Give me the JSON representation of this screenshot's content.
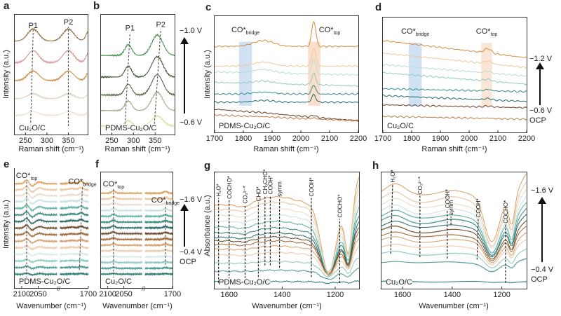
{
  "chart_data": [
    {
      "id": "a",
      "letter": "a",
      "type": "line",
      "sample": "Cu₂O/C",
      "xlabel": "Raman shift (cm⁻¹)",
      "ylabel": "Intensity (a.u.)",
      "xlim": [
        225,
        395
      ],
      "ylim": [
        0,
        1
      ],
      "ticks": [
        250,
        300,
        350
      ],
      "colors": [
        "#8a6a3a",
        "#d48a8a",
        "#c08a3a",
        "#ddd0bb",
        "#ece4d6"
      ],
      "offsets": [
        0.78,
        0.6,
        0.45,
        0.3,
        0.16
      ],
      "amps": [
        1,
        1,
        0.8,
        0.4,
        0.3
      ],
      "peaks": [
        {
          "x": 268,
          "w": 13,
          "h": 0.1
        },
        {
          "x": 350,
          "w": 13,
          "h": 0.1
        },
        {
          "x": 402,
          "w": 8,
          "h": 0.12
        }
      ],
      "guides": [
        {
          "label": "P1",
          "sub": "",
          "xb": 262,
          "xt": 268,
          "y0": 0.07,
          "y1": 0.87
        },
        {
          "label": "P2",
          "sub": "",
          "xb": 350,
          "xt": 350,
          "y0": 0.07,
          "y1": 0.9
        }
      ]
    },
    {
      "id": "b",
      "letter": "b",
      "type": "line",
      "sample": "PDMS-Cu₂O/C",
      "xlabel": "Raman shift (cm⁻¹)",
      "ylabel": "",
      "xlim": [
        225,
        395
      ],
      "ylim": [
        0,
        1
      ],
      "ticks": [
        250,
        300,
        350
      ],
      "colors": [
        "#2e8b3a",
        "#3c4a2e",
        "#4b5a38",
        "#9ca67e",
        "#d8de9c"
      ],
      "offsets": [
        0.66,
        0.48,
        0.33,
        0.2,
        0.07
      ],
      "amps": [
        1,
        1,
        1,
        0.9,
        0.5
      ],
      "peaks": [
        {
          "x": 288,
          "w": 8,
          "h": 0.09
        },
        {
          "x": 355,
          "w": 13,
          "h": 0.17
        }
      ],
      "guides": [
        {
          "label": "P1",
          "sub": "",
          "xb": 280,
          "xt": 292,
          "y0": 0.06,
          "y1": 0.85
        },
        {
          "label": "P2",
          "sub": "",
          "xb": 348,
          "xt": 363,
          "y0": 0.06,
          "y1": 0.88
        }
      ],
      "voltage": {
        "top": "−1.0 V",
        "bottom": "−0.6 V"
      }
    },
    {
      "id": "c",
      "letter": "c",
      "type": "line",
      "sample": "PDMS-Cu₂O/C",
      "xlabel": "Raman shift (cm⁻¹)",
      "ylabel": "Intensity (a.u.)",
      "xlim": [
        1700,
        2200
      ],
      "ylim": [
        0,
        1
      ],
      "ticks": [
        1700,
        1800,
        1900,
        2000,
        2100,
        2200
      ],
      "colors": [
        "#d98c3a",
        "#f2c69a",
        "#b5ddd6",
        "#8ccac0",
        "#2e8f84",
        "#1f6a68",
        "#6a3a20",
        "#c07a40"
      ],
      "offsets": [
        0.74,
        0.57,
        0.52,
        0.43,
        0.33,
        0.26,
        0.2,
        0.15
      ],
      "amps": [
        1,
        0.7,
        0.6,
        0.45,
        0.35,
        0.3,
        0.08,
        0.05
      ],
      "slopes": [
        0,
        0,
        -0.005,
        -0.006,
        0,
        0,
        -0.02,
        -0.01
      ],
      "peaks": [
        {
          "x": 2045,
          "w": 7,
          "h": 0.22
        },
        {
          "x": 1870,
          "w": 35,
          "h": 0.05
        }
      ],
      "bands": [
        {
          "x1": 1785,
          "x2": 1830,
          "color": "#a9c9ea",
          "label": "CO*",
          "sub": "bridge"
        },
        {
          "x1": 2025,
          "x2": 2068,
          "color": "#f6c6a2",
          "label": "CO*",
          "sub": "top"
        }
      ]
    },
    {
      "id": "d",
      "letter": "d",
      "type": "line",
      "sample": "Cu₂O/C",
      "xlabel": "Raman shift (cm⁻¹)",
      "ylabel": "",
      "xlim": [
        1700,
        2200
      ],
      "ylim": [
        0,
        1
      ],
      "ticks": [
        1700,
        1800,
        1900,
        2000,
        2100,
        2200
      ],
      "colors": [
        "#d98c3a",
        "#f2c69a",
        "#b5ddd6",
        "#8ccac0",
        "#2e8f84",
        "#1f6a68",
        "#6a3a20",
        "#c07a40"
      ],
      "offsets": [
        0.8,
        0.69,
        0.59,
        0.52,
        0.38,
        0.32,
        0.24,
        0.14
      ],
      "amps": [
        1,
        0.6,
        0.4,
        0.4,
        0.3,
        0.3,
        0.2,
        0.1
      ],
      "slopes": [
        -0.03,
        -0.025,
        -0.02,
        -0.02,
        -0.005,
        -0.01,
        -0.005,
        -0.005
      ],
      "peaks": [
        {
          "x": 2065,
          "w": 12,
          "h": 0.04
        }
      ],
      "bands": [
        {
          "x1": 1790,
          "x2": 1835,
          "color": "#a9c9ea",
          "label": "CO*",
          "sub": "bridge"
        },
        {
          "x1": 2042,
          "x2": 2080,
          "color": "#f6d2b4",
          "label": "CO*",
          "sub": "top"
        }
      ],
      "voltage": {
        "top": "−1.2 V",
        "bottom": "−0.6 V",
        "ocp": "OCP"
      }
    },
    {
      "id": "e",
      "letter": "e",
      "type": "line",
      "sample": "PDMS-Cu₂O/C",
      "xlabel": "Wavenumber (cm⁻¹)",
      "ylabel": "Intensity (a.u.)",
      "segments": [
        [
          2121,
          1993
        ],
        [
          1786,
          1700
        ]
      ],
      "ylim": [
        0,
        1
      ],
      "ticks": [
        2100,
        2050,
        1700
      ],
      "colors": [
        "#d9a060",
        "#e8c7a0",
        "#e9dccb",
        "#c9e2df",
        "#5fb0a5",
        "#3a8a80",
        "#2a6a66",
        "#6a4a2a",
        "#a06a3a",
        "#d6a070",
        "#ecc9a8",
        "#d8ece8",
        "#8cc8c0",
        "#4a9a90",
        "#2a7a70"
      ],
      "offsets": [
        0.87,
        0.82,
        0.77,
        0.72,
        0.665,
        0.61,
        0.555,
        0.5,
        0.445,
        0.39,
        0.335,
        0.28,
        0.225,
        0.17,
        0.115
      ],
      "amps": [
        1,
        1,
        0.95,
        0.9,
        0.9,
        0.85,
        0.85,
        0.8,
        0.75,
        0.7,
        0.6,
        0.5,
        0.45,
        0.4,
        0.3
      ],
      "peaks": [
        {
          "x": 2085,
          "w": 6,
          "h": 0.03
        },
        {
          "x": 2068,
          "w": 6,
          "h": -0.02
        },
        {
          "x": 2045,
          "w": 8,
          "h": 0.015
        },
        {
          "x": 1722,
          "w": 6,
          "h": 0.02
        },
        {
          "x": 1750,
          "w": 10,
          "h": 0.01
        }
      ],
      "guides": [
        {
          "label": "CO*",
          "sub": "top",
          "xb": 2085,
          "xt": 2085,
          "y0": 0.08,
          "y1": 0.9
        },
        {
          "label": "CO*",
          "sub": "bridge",
          "xb": 1727,
          "xt": 1718,
          "y0": 0.15,
          "y1": 0.85
        }
      ]
    },
    {
      "id": "f",
      "letter": "f",
      "type": "line",
      "sample": "Cu₂O/C",
      "xlabel": "Wavenumber (cm⁻¹)",
      "ylabel": "",
      "segments": [
        [
          2121,
          1993
        ],
        [
          1786,
          1700
        ]
      ],
      "ylim": [
        0,
        1
      ],
      "ticks": [
        2100,
        2050,
        1700
      ],
      "colors": [
        "#d9a060",
        "#e8c7a0",
        "#e9dccb",
        "#c9e2df",
        "#5fb0a5",
        "#3a8a80",
        "#2a6a66",
        "#6a4a2a",
        "#a06a3a",
        "#d6a070",
        "#ecc9a8",
        "#d8ece8",
        "#8cc8c0",
        "#4a9a90",
        "#2a7a70"
      ],
      "offsets": [
        0.82,
        0.77,
        0.72,
        0.67,
        0.62,
        0.57,
        0.52,
        0.47,
        0.42,
        0.37,
        0.32,
        0.27,
        0.22,
        0.17,
        0.12
      ],
      "amps": [
        1,
        1,
        0.9,
        0.9,
        0.85,
        0.8,
        0.8,
        0.75,
        0.7,
        0.65,
        0.6,
        0.5,
        0.45,
        0.4,
        0.3
      ],
      "peaks": [
        {
          "x": 2082,
          "w": 6,
          "h": 0.02
        },
        {
          "x": 1722,
          "w": 6,
          "h": 0.015
        }
      ],
      "guides": [
        {
          "label": "CO*",
          "sub": "top",
          "xb": 2082,
          "xt": 2082,
          "y0": 0.08,
          "y1": 0.86
        },
        {
          "label": "CO*",
          "sub": "bridge",
          "xb": 1722,
          "xt": 1722,
          "y0": 0.2,
          "y1": 0.72
        }
      ],
      "voltage": {
        "top": "−1.6 V",
        "bottom": "−0.4 V",
        "ocp": "OCP"
      }
    },
    {
      "id": "g",
      "letter": "g",
      "type": "line",
      "sample": "PDMS-Cu₂O/C",
      "xlabel": "Wavenumber (cm⁻¹)",
      "ylabel": "Absorbance (a.u.)",
      "xlim": [
        1655,
        1110
      ],
      "ylim": [
        0,
        1
      ],
      "ticks": [
        1600,
        1400,
        1200
      ],
      "colors": [
        "#d9a060",
        "#e8c7a0",
        "#e9dccb",
        "#c9e2df",
        "#5fb0a5",
        "#3a8a80",
        "#2a6a66",
        "#6a4a2a",
        "#a06a3a",
        "#d6a070",
        "#ecc9a8",
        "#8cc8c0",
        "#4a9a90",
        "#2a7a70"
      ],
      "offsets": [
        0.72,
        0.68,
        0.63,
        0.58,
        0.53,
        0.48,
        0.44,
        0.41,
        0.38,
        0.34,
        0.29,
        0.22,
        0.15,
        0.06
      ],
      "amps": [
        1,
        0.93,
        0.86,
        0.78,
        0.7,
        0.62,
        0.56,
        0.5,
        0.45,
        0.38,
        0.3,
        0.2,
        0.12,
        0.02
      ],
      "peaks": [
        {
          "x": 1420,
          "w": 70,
          "h": 0.07
        },
        {
          "x": 1545,
          "w": 25,
          "h": -0.03
        },
        {
          "x": 1225,
          "w": 28,
          "h": -0.58
        },
        {
          "x": 1150,
          "w": 13,
          "h": -0.45
        },
        {
          "x": 1080,
          "w": 35,
          "h": 0.35
        }
      ],
      "guides": [
        {
          "label": "H₂O*",
          "sub": "",
          "xb": 1640,
          "xt": 1640,
          "y0": 0.05,
          "y1": 0.78
        },
        {
          "label": "COCHO*",
          "sub": "",
          "xb": 1600,
          "xt": 1600,
          "y0": 0.05,
          "y1": 0.76
        },
        {
          "label": "CO₃²⁻*",
          "sub": "",
          "xb": 1540,
          "xt": 1540,
          "y0": 0.09,
          "y1": 0.72
        },
        {
          "label": "CHO*",
          "sub": "",
          "xb": 1490,
          "xt": 1490,
          "y0": 0.07,
          "y1": 0.74
        },
        {
          "label": "CH₃CHO*",
          "sub": "",
          "xb": 1465,
          "xt": 1465,
          "y0": 0.2,
          "y1": 0.8
        },
        {
          "label": "COOH*",
          "sub": "",
          "xb": 1445,
          "xt": 1445,
          "y0": 0.2,
          "y1": 0.8
        },
        {
          "label": "symm",
          "sub": "",
          "xb": 1410,
          "xt": 1410,
          "y0": 0.18,
          "y1": 0.78
        },
        {
          "label": "COOH*",
          "sub": "",
          "xb": 1290,
          "xt": 1290,
          "y0": 0.1,
          "y1": 0.78
        },
        {
          "label": "COCHO*",
          "sub": "",
          "xb": 1183,
          "xt": 1183,
          "y0": 0.05,
          "y1": 0.6
        }
      ]
    },
    {
      "id": "h",
      "letter": "h",
      "type": "line",
      "sample": "Cu₂O/C",
      "xlabel": "Wavenumber (cm⁻¹)",
      "ylabel": "",
      "xlim": [
        1685,
        1100
      ],
      "ylim": [
        0,
        1
      ],
      "ticks": [
        1600,
        1400,
        1200
      ],
      "colors": [
        "#d9a060",
        "#e8c7a0",
        "#e9dccb",
        "#c9e2df",
        "#5fb0a5",
        "#3a8a80",
        "#2a6a66",
        "#6a4a2a",
        "#a06a3a",
        "#d6a070",
        "#ecc9a8",
        "#8cc8c0",
        "#4a9a90",
        "#2a7a70"
      ],
      "offsets": [
        0.8,
        0.74,
        0.69,
        0.64,
        0.6,
        0.56,
        0.52,
        0.48,
        0.44,
        0.4,
        0.35,
        0.29,
        0.22,
        0.06
      ],
      "amps": [
        1,
        0.93,
        0.86,
        0.8,
        0.74,
        0.68,
        0.62,
        0.56,
        0.5,
        0.44,
        0.36,
        0.28,
        0.18,
        0.02
      ],
      "peaks": [
        {
          "x": 1630,
          "w": 40,
          "h": 0.1
        },
        {
          "x": 1400,
          "w": 50,
          "h": 0.05
        },
        {
          "x": 1240,
          "w": 30,
          "h": -0.4
        },
        {
          "x": 1160,
          "w": 12,
          "h": -0.25
        },
        {
          "x": 1090,
          "w": 30,
          "h": 0.2
        }
      ],
      "guides": [
        {
          "label": "H₂O*",
          "sub": "",
          "xb": 1648,
          "xt": 1640,
          "y0": 0.3,
          "y1": 0.9
        },
        {
          "label": "CO₃²⁻*",
          "sub": "",
          "xb": 1530,
          "xt": 1530,
          "y0": 0.27,
          "y1": 0.8
        },
        {
          "label": "COOH*",
          "sub": "",
          "xb": 1420,
          "xt": 1420,
          "y0": 0.26,
          "y1": 0.68
        },
        {
          "label": "symm",
          "sub": "",
          "xb": 1405,
          "xt": 1405,
          "y0": 0.55,
          "y1": 0.62
        },
        {
          "label": "COOH*",
          "sub": "",
          "xb": 1300,
          "xt": 1295,
          "y0": 0.25,
          "y1": 0.6
        },
        {
          "label": "COCHO*",
          "sub": "",
          "xb": 1185,
          "xt": 1185,
          "y0": 0.05,
          "y1": 0.55
        }
      ],
      "voltage": {
        "top": "−1.6 V",
        "bottom": "−0.4 V",
        "ocp": "OCP"
      }
    }
  ]
}
